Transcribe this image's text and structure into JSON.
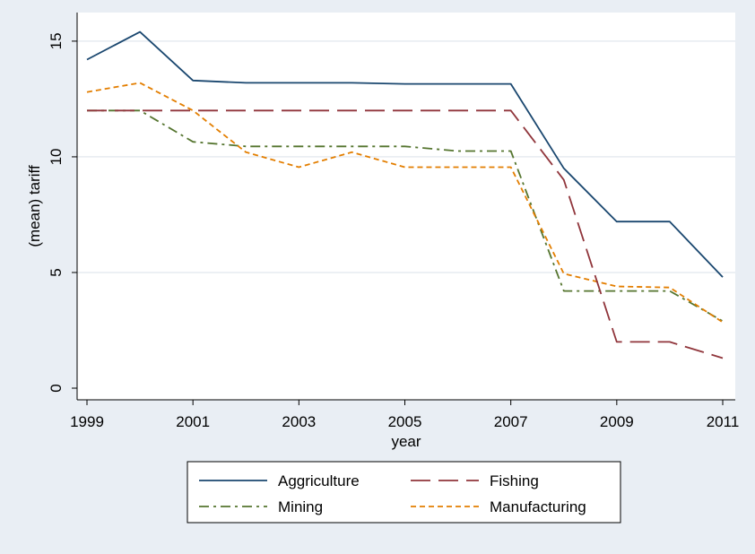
{
  "chart_data": {
    "type": "line",
    "title": "",
    "xlabel": "year",
    "ylabel": "(mean) tariff",
    "x": [
      1999,
      2000,
      2001,
      2002,
      2003,
      2004,
      2005,
      2006,
      2007,
      2008,
      2009,
      2010,
      2011
    ],
    "xticks": [
      1999,
      2001,
      2003,
      2005,
      2007,
      2009,
      2011
    ],
    "yticks": [
      0,
      5,
      10,
      15
    ],
    "xlim": [
      1999,
      2011
    ],
    "ylim": [
      0,
      16
    ],
    "grid": true,
    "legend_placement": "bottom",
    "plot_background": "#ffffff",
    "page_background": "#e9eef4",
    "series": [
      {
        "name": "Aggriculture",
        "color": "#1a476f",
        "dash": "solid",
        "values": [
          14.2,
          15.4,
          13.3,
          13.2,
          13.2,
          13.2,
          13.15,
          13.15,
          13.15,
          9.5,
          7.2,
          7.2,
          4.8
        ]
      },
      {
        "name": "Fishing",
        "color": "#90353b",
        "dash": "long-dash",
        "values": [
          12.0,
          12.0,
          12.0,
          12.0,
          12.0,
          12.0,
          12.0,
          12.0,
          12.0,
          9.0,
          2.0,
          2.0,
          1.3
        ]
      },
      {
        "name": "Mining",
        "color": "#55752f",
        "dash": "dash-dot",
        "values": [
          12.0,
          12.0,
          10.65,
          10.45,
          10.45,
          10.45,
          10.45,
          10.25,
          10.25,
          4.2,
          4.2,
          4.2,
          2.9
        ]
      },
      {
        "name": "Manufacturing",
        "color": "#e37e00",
        "dash": "short-dash",
        "values": [
          12.8,
          13.2,
          12.0,
          10.2,
          9.55,
          10.2,
          9.55,
          9.55,
          9.55,
          4.95,
          4.4,
          4.35,
          2.85
        ]
      }
    ]
  }
}
